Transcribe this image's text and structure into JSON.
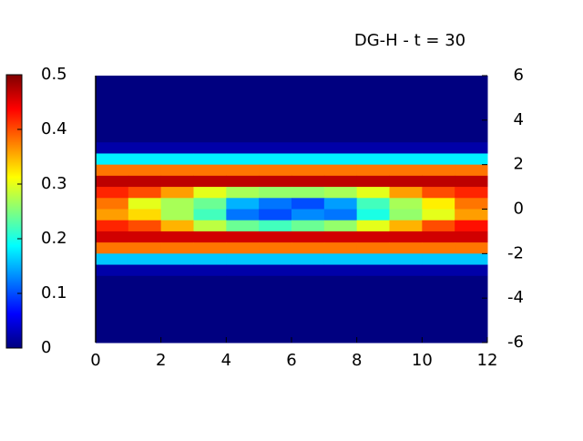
{
  "chart_data": {
    "type": "heatmap",
    "title": "DG-H  - t = 30",
    "x": [
      0.5,
      1.5,
      2.5,
      3.5,
      4.5,
      5.5,
      6.5,
      7.5,
      8.5,
      9.5,
      10.5,
      11.5
    ],
    "y": [
      5.75,
      5.25,
      4.75,
      4.25,
      3.75,
      3.25,
      2.75,
      2.25,
      1.75,
      1.25,
      0.75,
      0.25,
      -0.25,
      -0.75,
      -1.25,
      -1.75,
      -2.25,
      -2.75,
      -3.25,
      -3.75,
      -4.25,
      -4.75,
      -5.25,
      -5.75
    ],
    "z": [
      [
        0,
        0,
        0,
        0,
        0,
        0,
        0,
        0,
        0,
        0,
        0,
        0
      ],
      [
        0,
        0,
        0,
        0,
        0,
        0,
        0,
        0,
        0,
        0,
        0,
        0
      ],
      [
        0,
        0,
        0,
        0,
        0,
        0,
        0,
        0,
        0,
        0,
        0,
        0
      ],
      [
        0,
        0,
        0,
        0,
        0,
        0,
        0,
        0,
        0,
        0,
        0,
        0
      ],
      [
        0,
        0,
        0,
        0,
        0,
        0,
        0,
        0,
        0,
        0,
        0,
        0
      ],
      [
        0,
        0,
        0,
        0,
        0,
        0,
        0,
        0,
        0,
        0,
        0,
        0
      ],
      [
        0.02,
        0.02,
        0.02,
        0.02,
        0.02,
        0.02,
        0.02,
        0.02,
        0.02,
        0.02,
        0.02,
        0.02
      ],
      [
        0.18,
        0.18,
        0.18,
        0.18,
        0.18,
        0.18,
        0.18,
        0.18,
        0.18,
        0.18,
        0.18,
        0.18
      ],
      [
        0.38,
        0.38,
        0.38,
        0.38,
        0.38,
        0.38,
        0.38,
        0.38,
        0.38,
        0.38,
        0.38,
        0.38
      ],
      [
        0.47,
        0.47,
        0.47,
        0.47,
        0.47,
        0.47,
        0.47,
        0.47,
        0.47,
        0.47,
        0.47,
        0.47
      ],
      [
        0.42,
        0.4,
        0.36,
        0.3,
        0.27,
        0.26,
        0.26,
        0.27,
        0.3,
        0.36,
        0.4,
        0.42
      ],
      [
        0.38,
        0.3,
        0.27,
        0.24,
        0.15,
        0.12,
        0.1,
        0.14,
        0.22,
        0.27,
        0.32,
        0.38
      ],
      [
        0.36,
        0.33,
        0.27,
        0.22,
        0.12,
        0.1,
        0.13,
        0.12,
        0.2,
        0.26,
        0.3,
        0.36
      ],
      [
        0.42,
        0.4,
        0.35,
        0.28,
        0.24,
        0.22,
        0.24,
        0.26,
        0.3,
        0.35,
        0.4,
        0.43
      ],
      [
        0.46,
        0.46,
        0.46,
        0.46,
        0.46,
        0.46,
        0.46,
        0.46,
        0.46,
        0.46,
        0.46,
        0.46
      ],
      [
        0.38,
        0.38,
        0.38,
        0.38,
        0.38,
        0.38,
        0.38,
        0.38,
        0.38,
        0.38,
        0.38,
        0.38
      ],
      [
        0.16,
        0.16,
        0.16,
        0.16,
        0.16,
        0.16,
        0.16,
        0.16,
        0.16,
        0.16,
        0.16,
        0.16
      ],
      [
        0.02,
        0.02,
        0.02,
        0.02,
        0.02,
        0.02,
        0.02,
        0.02,
        0.02,
        0.02,
        0.02,
        0.02
      ],
      [
        0,
        0,
        0,
        0,
        0,
        0,
        0,
        0,
        0,
        0,
        0,
        0
      ],
      [
        0,
        0,
        0,
        0,
        0,
        0,
        0,
        0,
        0,
        0,
        0,
        0
      ],
      [
        0,
        0,
        0,
        0,
        0,
        0,
        0,
        0,
        0,
        0,
        0,
        0
      ],
      [
        0,
        0,
        0,
        0,
        0,
        0,
        0,
        0,
        0,
        0,
        0,
        0
      ],
      [
        0,
        0,
        0,
        0,
        0,
        0,
        0,
        0,
        0,
        0,
        0,
        0
      ],
      [
        0,
        0,
        0,
        0,
        0,
        0,
        0,
        0,
        0,
        0,
        0,
        0
      ]
    ],
    "colormap": "jet",
    "xlim": [
      0,
      12
    ],
    "xticks": [
      0,
      2,
      4,
      6,
      8,
      10,
      12
    ],
    "ylim": [
      -6,
      6
    ],
    "yticks": [
      6,
      4,
      2,
      0,
      -2,
      -4,
      -6
    ],
    "zlim": [
      0,
      0.5
    ],
    "zticks": [
      0,
      0.1,
      0.2,
      0.3,
      0.4,
      0.5
    ]
  }
}
